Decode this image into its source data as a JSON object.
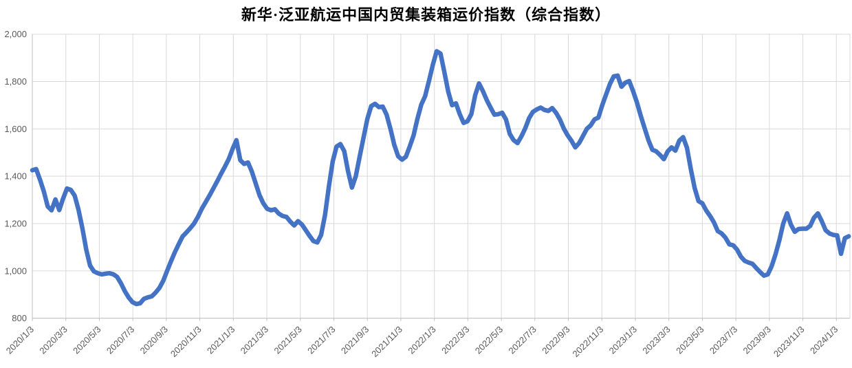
{
  "title": "新华·泛亚航运中国内贸集装箱运价指数（综合指数）",
  "chart_data": {
    "type": "line",
    "title": "新华·泛亚航运中国内贸集装箱运价指数（综合指数）",
    "x_start": "2020/1/3",
    "x_frequency": "weekly",
    "x_tick_labels": [
      "2020/1/3",
      "2020/3/3",
      "2020/5/3",
      "2020/7/3",
      "2020/9/3",
      "2020/11/3",
      "2021/1/3",
      "2021/3/3",
      "2021/5/3",
      "2021/7/3",
      "2021/9/3",
      "2021/11/3",
      "2022/1/3",
      "2022/3/3",
      "2022/5/3",
      "2022/7/3",
      "2022/9/3",
      "2022/11/3",
      "2023/1/3",
      "2023/3/3",
      "2023/5/3",
      "2023/7/3",
      "2023/9/3",
      "2023/11/3",
      "2024/1/3"
    ],
    "y_tick_labels": [
      "2,000",
      "1,800",
      "1,600",
      "1,400",
      "1,200",
      "1,000",
      "800"
    ],
    "y_ticks": [
      2000,
      1800,
      1600,
      1400,
      1200,
      1000,
      800
    ],
    "ylim": [
      800,
      2000
    ],
    "grid": true,
    "legend": "none",
    "line_color": "#4472C4",
    "gridline_color": "#D9D9D9",
    "axis_label_color": "#595959",
    "values": [
      1425,
      1430,
      1385,
      1335,
      1272,
      1256,
      1302,
      1257,
      1306,
      1348,
      1342,
      1318,
      1258,
      1180,
      1090,
      1022,
      998,
      990,
      985,
      988,
      990,
      986,
      975,
      948,
      915,
      888,
      868,
      860,
      863,
      882,
      888,
      892,
      908,
      928,
      958,
      1000,
      1040,
      1078,
      1112,
      1145,
      1162,
      1180,
      1200,
      1228,
      1262,
      1290,
      1318,
      1348,
      1378,
      1410,
      1440,
      1472,
      1515,
      1552,
      1468,
      1452,
      1458,
      1420,
      1370,
      1320,
      1285,
      1262,
      1256,
      1260,
      1242,
      1232,
      1228,
      1208,
      1192,
      1210,
      1196,
      1172,
      1148,
      1126,
      1120,
      1152,
      1235,
      1355,
      1462,
      1525,
      1536,
      1506,
      1420,
      1352,
      1400,
      1482,
      1562,
      1642,
      1696,
      1706,
      1692,
      1694,
      1660,
      1600,
      1532,
      1484,
      1470,
      1482,
      1525,
      1572,
      1642,
      1702,
      1738,
      1802,
      1870,
      1928,
      1918,
      1840,
      1758,
      1700,
      1708,
      1662,
      1625,
      1632,
      1662,
      1742,
      1792,
      1760,
      1722,
      1690,
      1660,
      1662,
      1668,
      1640,
      1578,
      1552,
      1540,
      1568,
      1602,
      1645,
      1672,
      1682,
      1690,
      1680,
      1676,
      1688,
      1668,
      1640,
      1602,
      1573,
      1550,
      1522,
      1540,
      1570,
      1600,
      1615,
      1640,
      1648,
      1700,
      1745,
      1790,
      1822,
      1825,
      1778,
      1795,
      1802,
      1760,
      1712,
      1655,
      1603,
      1552,
      1512,
      1505,
      1490,
      1472,
      1505,
      1522,
      1508,
      1550,
      1565,
      1520,
      1430,
      1350,
      1295,
      1285,
      1255,
      1232,
      1205,
      1168,
      1158,
      1140,
      1112,
      1108,
      1090,
      1060,
      1042,
      1035,
      1030,
      1012,
      995,
      980,
      985,
      1020,
      1070,
      1130,
      1200,
      1243,
      1195,
      1165,
      1177,
      1178,
      1178,
      1190,
      1225,
      1243,
      1210,
      1172,
      1158,
      1152,
      1150,
      1072,
      1138,
      1146
    ]
  }
}
